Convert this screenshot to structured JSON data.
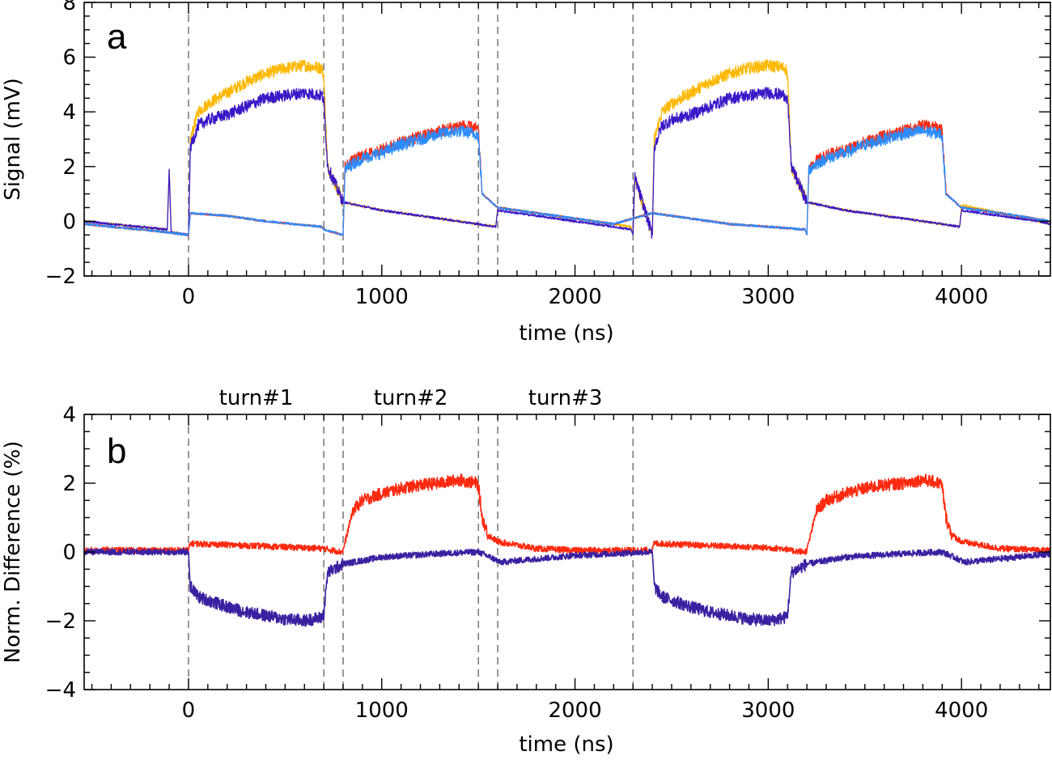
{
  "chart_data": [
    {
      "type": "line",
      "panel": "a",
      "xlabel": "time (ns)",
      "ylabel": "Signal (mV)",
      "xlim": [
        -540,
        4460
      ],
      "ylim": [
        -2,
        8
      ],
      "xticks": [
        0,
        1000,
        2000,
        3000,
        4000
      ],
      "yticks": [
        -2,
        0,
        2,
        4,
        6,
        8
      ],
      "grid": false,
      "vlines": [
        0,
        700,
        800,
        1500,
        1600,
        2300
      ],
      "series": [
        {
          "color": "#ffb800",
          "x": [
            -540,
            -110,
            -100,
            -90,
            0,
            10,
            50,
            100,
            200,
            300,
            400,
            500,
            600,
            690,
            700,
            720,
            800,
            1000,
            1200,
            1400,
            1590,
            1600,
            1800,
            2000,
            2200,
            2290,
            2300,
            2310,
            2400,
            2410,
            2450,
            2500,
            2600,
            2700,
            2800,
            2900,
            3000,
            3090,
            3100,
            3120,
            3200,
            3400,
            3600,
            3800,
            3990,
            4000,
            4200,
            4400,
            4460
          ],
          "y": [
            0,
            -0.3,
            1.9,
            -0.4,
            -0.5,
            3.0,
            4.0,
            4.3,
            4.7,
            5.1,
            5.4,
            5.6,
            5.7,
            5.6,
            5.3,
            2.0,
            0.7,
            0.4,
            0.2,
            0.0,
            -0.2,
            0.5,
            0.3,
            0.1,
            -0.1,
            -0.2,
            -0.5,
            1.6,
            -0.5,
            3.0,
            4.0,
            4.3,
            4.7,
            5.1,
            5.4,
            5.6,
            5.7,
            5.6,
            5.3,
            2.0,
            0.7,
            0.4,
            0.2,
            0.0,
            -0.2,
            0.6,
            0.3,
            0.0,
            -0.1
          ]
        },
        {
          "color": "#3a18c8",
          "x": [
            -540,
            -110,
            -100,
            -90,
            0,
            10,
            50,
            100,
            200,
            300,
            400,
            500,
            600,
            690,
            700,
            720,
            800,
            1000,
            1200,
            1400,
            1590,
            1600,
            1800,
            2000,
            2200,
            2290,
            2300,
            2310,
            2400,
            2410,
            2450,
            2500,
            2600,
            2700,
            2800,
            2900,
            3000,
            3090,
            3100,
            3120,
            3200,
            3400,
            3600,
            3800,
            3990,
            4000,
            4200,
            4400,
            4460
          ],
          "y": [
            0,
            -0.3,
            1.9,
            -0.4,
            -0.5,
            2.7,
            3.5,
            3.7,
            3.9,
            4.2,
            4.5,
            4.6,
            4.7,
            4.6,
            4.4,
            2.0,
            0.7,
            0.4,
            0.2,
            0.0,
            -0.2,
            0.4,
            0.2,
            0.0,
            -0.2,
            -0.3,
            -0.5,
            1.6,
            -0.5,
            2.7,
            3.5,
            3.7,
            3.9,
            4.2,
            4.5,
            4.6,
            4.7,
            4.6,
            4.4,
            2.0,
            0.7,
            0.4,
            0.2,
            0.0,
            -0.2,
            0.4,
            0.2,
            0.0,
            -0.1
          ]
        },
        {
          "color": "#ff2a10",
          "x": [
            -540,
            -110,
            0,
            10,
            200,
            400,
            690,
            700,
            800,
            810,
            850,
            900,
            1000,
            1100,
            1200,
            1300,
            1400,
            1490,
            1500,
            1520,
            1600,
            1800,
            2000,
            2200,
            2400,
            2600,
            2800,
            3000,
            3190,
            3200,
            3210,
            3250,
            3300,
            3400,
            3500,
            3600,
            3700,
            3800,
            3890,
            3900,
            3920,
            4000,
            4200,
            4460
          ],
          "y": [
            -0.1,
            -0.4,
            -0.5,
            0.3,
            0.2,
            0.0,
            -0.2,
            -0.3,
            -0.5,
            2.0,
            2.2,
            2.4,
            2.6,
            2.9,
            3.1,
            3.3,
            3.5,
            3.4,
            3.3,
            1.0,
            0.5,
            0.3,
            0.1,
            -0.1,
            0.3,
            0.1,
            -0.1,
            -0.2,
            -0.3,
            -0.5,
            2.0,
            2.2,
            2.4,
            2.6,
            2.9,
            3.1,
            3.3,
            3.5,
            3.4,
            3.3,
            1.0,
            0.5,
            0.3,
            0.0
          ]
        },
        {
          "color": "#2a8cff",
          "x": [
            -540,
            -110,
            0,
            10,
            200,
            400,
            690,
            700,
            800,
            810,
            850,
            900,
            1000,
            1100,
            1200,
            1300,
            1400,
            1490,
            1500,
            1520,
            1600,
            1800,
            2000,
            2200,
            2400,
            2600,
            2800,
            3000,
            3190,
            3200,
            3210,
            3250,
            3300,
            3400,
            3500,
            3600,
            3700,
            3800,
            3890,
            3900,
            3920,
            4000,
            4200,
            4460
          ],
          "y": [
            -0.1,
            -0.4,
            -0.5,
            0.3,
            0.2,
            0.0,
            -0.2,
            -0.3,
            -0.5,
            1.9,
            2.1,
            2.3,
            2.5,
            2.8,
            3.0,
            3.2,
            3.3,
            3.2,
            3.1,
            1.0,
            0.5,
            0.3,
            0.1,
            -0.1,
            0.3,
            0.1,
            -0.1,
            -0.2,
            -0.3,
            -0.5,
            1.9,
            2.1,
            2.3,
            2.5,
            2.8,
            3.0,
            3.2,
            3.3,
            3.2,
            3.1,
            1.0,
            0.5,
            0.3,
            0.0
          ]
        }
      ]
    },
    {
      "type": "line",
      "panel": "b",
      "xlabel": "time (ns)",
      "ylabel": "Norm. Difference (%)",
      "xlim": [
        -540,
        4460
      ],
      "ylim": [
        -4,
        4
      ],
      "xticks": [
        0,
        1000,
        2000,
        3000,
        4000
      ],
      "yticks": [
        -4,
        -2,
        0,
        2,
        4
      ],
      "grid": false,
      "vlines": [
        0,
        700,
        800,
        1500,
        1600,
        2300
      ],
      "annotations": [
        {
          "text": "turn#1",
          "x": 350,
          "y": 4.5
        },
        {
          "text": "turn#2",
          "x": 1150,
          "y": 4.5
        },
        {
          "text": "turn#3",
          "x": 1950,
          "y": 4.5
        }
      ],
      "series": [
        {
          "color": "#ff2a10",
          "x": [
            -540,
            0,
            10,
            700,
            790,
            800,
            850,
            900,
            1000,
            1100,
            1200,
            1300,
            1400,
            1490,
            1500,
            1520,
            1550,
            1600,
            1800,
            2000,
            2200,
            2390,
            2400,
            2410,
            3090,
            3100,
            3190,
            3200,
            3250,
            3300,
            3400,
            3500,
            3600,
            3700,
            3800,
            3890,
            3900,
            3920,
            3950,
            4000,
            4200,
            4460
          ],
          "y": [
            0.05,
            0.05,
            0.25,
            0.1,
            0.0,
            0.05,
            1.2,
            1.5,
            1.7,
            1.85,
            1.95,
            2.0,
            2.1,
            2.0,
            1.9,
            1.0,
            0.5,
            0.3,
            0.1,
            0.05,
            0.05,
            0.05,
            0.05,
            0.25,
            0.1,
            0.05,
            0.0,
            0.05,
            1.2,
            1.5,
            1.7,
            1.85,
            1.95,
            2.0,
            2.1,
            2.0,
            1.9,
            1.0,
            0.5,
            0.3,
            0.1,
            0.05
          ]
        },
        {
          "color": "#3a20a0",
          "x": [
            -540,
            -100,
            0,
            10,
            50,
            100,
            200,
            300,
            400,
            500,
            600,
            690,
            700,
            720,
            800,
            900,
            1000,
            1200,
            1400,
            1500,
            1600,
            1610,
            1700,
            1800,
            2000,
            2200,
            2390,
            2400,
            2410,
            2450,
            2500,
            2600,
            2700,
            2800,
            2900,
            3000,
            3090,
            3100,
            3120,
            3200,
            3300,
            3400,
            3600,
            3800,
            3900,
            4000,
            4010,
            4100,
            4200,
            4460
          ],
          "y": [
            0.0,
            0.0,
            0.0,
            -1.0,
            -1.3,
            -1.4,
            -1.6,
            -1.75,
            -1.85,
            -1.95,
            -2.0,
            -1.9,
            -1.8,
            -0.6,
            -0.35,
            -0.25,
            -0.15,
            -0.08,
            -0.02,
            0.0,
            -0.25,
            -0.3,
            -0.25,
            -0.2,
            -0.1,
            -0.05,
            0.0,
            0.0,
            -1.0,
            -1.3,
            -1.4,
            -1.6,
            -1.75,
            -1.85,
            -1.95,
            -2.0,
            -1.9,
            -1.8,
            -0.6,
            -0.35,
            -0.25,
            -0.15,
            -0.08,
            -0.02,
            0.0,
            -0.25,
            -0.3,
            -0.25,
            -0.2,
            -0.05
          ]
        }
      ]
    }
  ]
}
